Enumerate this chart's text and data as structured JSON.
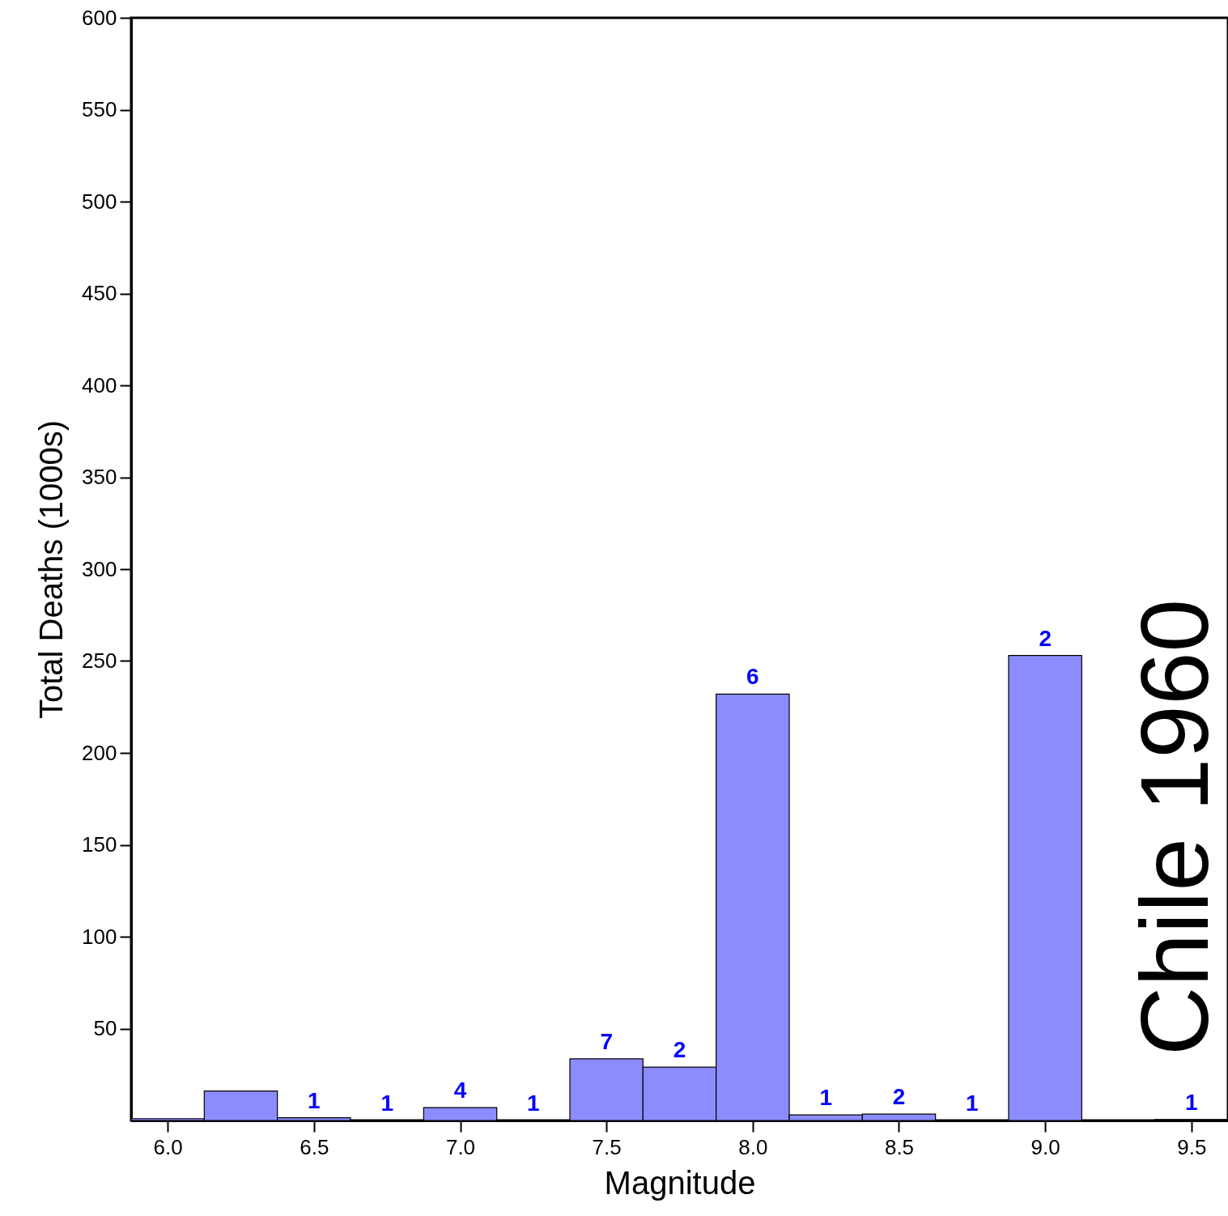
{
  "chart_data": {
    "type": "histogram",
    "xlabel": "Magnitude",
    "ylabel": "Total Deaths (1000s)",
    "bins": [
      5.875,
      6.125,
      6.375,
      6.625,
      6.875,
      7.125,
      7.375,
      7.625,
      7.875,
      8.125,
      8.375,
      8.625,
      8.875,
      9.125,
      9.375,
      9.625
    ],
    "values": [
      1,
      16,
      1.5,
      0,
      7,
      0,
      33.5,
      29,
      232,
      3,
      3.5,
      0,
      253,
      0,
      0.5
    ],
    "color": "#8c8cff",
    "xlim": [
      5.875,
      9.625
    ],
    "xticks": [
      {
        "value": 6,
        "label": "6.0"
      },
      6.5,
      {
        "value": 7,
        "label": "7.0"
      },
      7.5,
      {
        "value": 8,
        "label": "8.0"
      },
      8.5,
      {
        "value": 9,
        "label": "9.0"
      },
      9.5
    ],
    "ylim": [
      0,
      600
    ],
    "yticks": [
      50,
      100,
      150,
      200,
      250,
      300,
      350,
      400,
      450,
      500,
      550,
      600
    ],
    "grid": false,
    "annotations": [
      {
        "text": "1",
        "x": 6.5,
        "y": 1.5
      },
      {
        "text": "1",
        "x": 6.75,
        "y": 0
      },
      {
        "text": "4",
        "x": 7.0,
        "y": 7
      },
      {
        "text": "1",
        "x": 7.25,
        "y": 0
      },
      {
        "text": "7",
        "x": 7.5,
        "y": 33.5
      },
      {
        "text": "2",
        "x": 7.75,
        "y": 29
      },
      {
        "text": "6",
        "x": 8.0,
        "y": 232
      },
      {
        "text": "1",
        "x": 8.25,
        "y": 3
      },
      {
        "text": "2",
        "x": 8.5,
        "y": 3.5
      },
      {
        "text": "1",
        "x": 8.75,
        "y": 0
      },
      {
        "text": "2",
        "x": 9.0,
        "y": 253
      },
      {
        "text": "1",
        "x": 9.5,
        "y": 0.5
      },
      "Chile 1960"
    ]
  }
}
